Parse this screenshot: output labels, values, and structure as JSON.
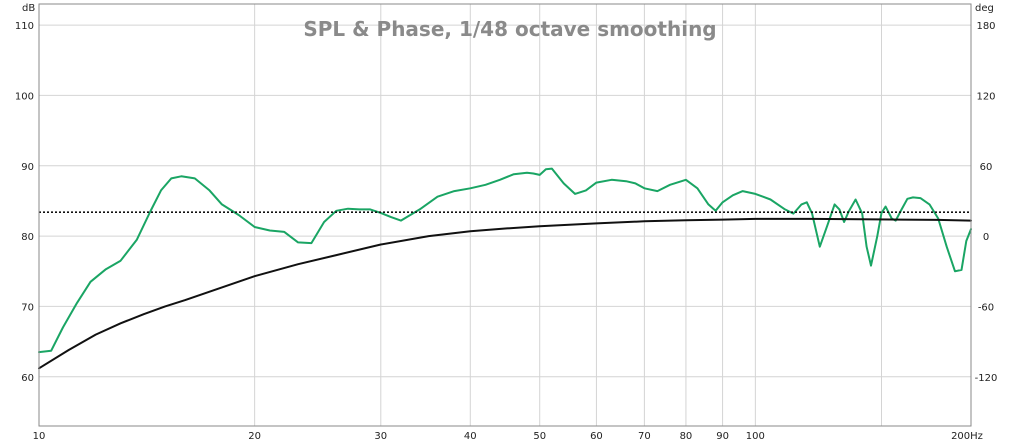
{
  "chart_data": {
    "type": "line",
    "title": "SPL & Phase, 1/48 octave smoothing",
    "x_scale": "log",
    "xlim": [
      10,
      200
    ],
    "x_unit": "Hz",
    "y_left_unit": "dB",
    "y_right_unit": "deg",
    "ylim_left": [
      53,
      113
    ],
    "ylim_right": [
      -162,
      198
    ],
    "grid": true,
    "x_ticks": [
      {
        "v": 10,
        "label": "10"
      },
      {
        "v": 20,
        "label": "20"
      },
      {
        "v": 30,
        "label": "30"
      },
      {
        "v": 40,
        "label": "40"
      },
      {
        "v": 50,
        "label": "50"
      },
      {
        "v": 60,
        "label": "60"
      },
      {
        "v": 70,
        "label": "70"
      },
      {
        "v": 80,
        "label": "80"
      },
      {
        "v": 90,
        "label": "90"
      },
      {
        "v": 100,
        "label": "100"
      },
      {
        "v": 200,
        "label": "200Hz"
      }
    ],
    "x_minor_gridlines": [
      150
    ],
    "y_left_ticks": [
      60,
      70,
      80,
      90,
      100,
      110
    ],
    "y_right_ticks": [
      -120,
      -60,
      0,
      60,
      120,
      180
    ],
    "series": [
      {
        "axis": "left",
        "color": "#1aa564",
        "style": "solid",
        "x": [
          10,
          10.4,
          10.8,
          11.3,
          11.8,
          12.4,
          13,
          13.7,
          14.3,
          14.8,
          15.3,
          15.8,
          16.5,
          17.3,
          18,
          19,
          20,
          21,
          22,
          23,
          24,
          25,
          26,
          27,
          28,
          29,
          30,
          31,
          32,
          34,
          36,
          38,
          40,
          42,
          44,
          46,
          48,
          49,
          50,
          51,
          52,
          54,
          56,
          58,
          60,
          63,
          66,
          68,
          70,
          73,
          76,
          80,
          83,
          86,
          88,
          90,
          93,
          96,
          100,
          105,
          110,
          113,
          116,
          118,
          120,
          123,
          126,
          129,
          131,
          133,
          135,
          138,
          141,
          143,
          145,
          148,
          150,
          152,
          155,
          157,
          160,
          163,
          166,
          170,
          175,
          180,
          185,
          190,
          194,
          197,
          200
        ],
        "y": [
          63.5,
          63.7,
          67,
          70.5,
          73.5,
          75.3,
          76.5,
          79.5,
          83.5,
          86.5,
          88.2,
          88.5,
          88.2,
          86.5,
          84.5,
          83,
          81.3,
          80.8,
          80.6,
          79.1,
          79,
          82,
          83.6,
          83.9,
          83.8,
          83.8,
          83.3,
          82.7,
          82.2,
          83.8,
          85.6,
          86.4,
          86.8,
          87.3,
          88,
          88.8,
          89,
          88.9,
          88.7,
          89.5,
          89.6,
          87.5,
          86,
          86.5,
          87.6,
          88,
          87.8,
          87.5,
          86.8,
          86.4,
          87.3,
          88,
          86.8,
          84.5,
          83.6,
          84.8,
          85.8,
          86.4,
          86,
          85.2,
          83.8,
          83.2,
          84.5,
          84.8,
          83.2,
          78.5,
          81.5,
          84.5,
          83.8,
          82,
          83.5,
          85.2,
          83.2,
          78.5,
          75.8,
          80,
          83.3,
          84.2,
          82.5,
          82.2,
          83.8,
          85.3,
          85.5,
          85.4,
          84.5,
          82.5,
          78.5,
          75,
          75.2,
          79.3,
          81
        ]
      },
      {
        "axis": "left",
        "color": "#111111",
        "style": "solid",
        "x": [
          10,
          11,
          12,
          13,
          14,
          15,
          16,
          18,
          20,
          23,
          26,
          30,
          35,
          40,
          45,
          50,
          60,
          70,
          80,
          90,
          100,
          110,
          120,
          140,
          160,
          180,
          200
        ],
        "y": [
          61.2,
          63.8,
          66,
          67.6,
          68.9,
          70,
          70.9,
          72.7,
          74.3,
          76,
          77.3,
          78.8,
          80,
          80.7,
          81.1,
          81.4,
          81.8,
          82.1,
          82.25,
          82.35,
          82.45,
          82.45,
          82.45,
          82.4,
          82.35,
          82.3,
          82.2
        ]
      },
      {
        "axis": "left",
        "color": "#111111",
        "style": "dotted",
        "x": [
          10,
          200
        ],
        "y": [
          83.4,
          83.4
        ]
      }
    ]
  }
}
